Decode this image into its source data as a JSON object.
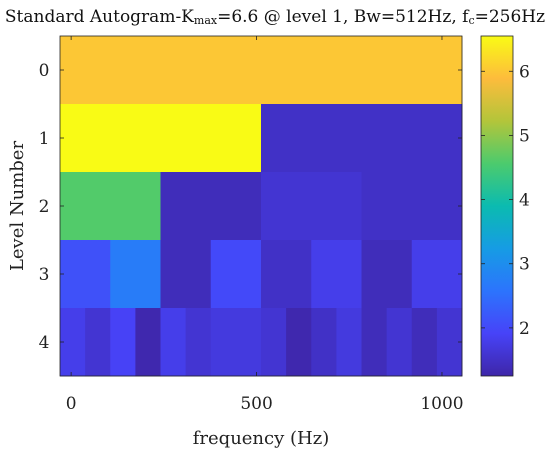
{
  "chart_data": {
    "type": "heatmap",
    "title": {
      "prefix": "Standard Autogram-K",
      "kmax_sub": "max",
      "middle": "=6.6 @ level 1, Bw=512Hz, f",
      "fc_sub": "c",
      "suffix": "=256Hz"
    },
    "xlabel": "frequency (Hz)",
    "ylabel": "Level Number",
    "xlim": [
      -30,
      1054
    ],
    "x_ticks": [
      0,
      500,
      1000
    ],
    "y_ticks": [
      0,
      1,
      2,
      3,
      4
    ],
    "colorbar": {
      "range": [
        1.25,
        6.55
      ],
      "ticks": [
        2,
        3,
        4,
        5,
        6
      ]
    },
    "levels": [
      {
        "level": 0,
        "values": [
          6.0
        ]
      },
      {
        "level": 1,
        "values": [
          6.6,
          1.5
        ]
      },
      {
        "level": 2,
        "values": [
          4.6,
          1.4,
          1.6,
          1.5
        ]
      },
      {
        "level": 3,
        "values": [
          2.1,
          2.7,
          1.4,
          2.0,
          1.5,
          1.8,
          1.4,
          1.8
        ]
      },
      {
        "level": 4,
        "values": [
          1.8,
          1.6,
          1.9,
          1.3,
          1.8,
          1.6,
          1.7,
          1.7,
          1.6,
          1.3,
          1.5,
          1.7,
          1.4,
          1.6,
          1.4,
          1.6
        ]
      }
    ]
  }
}
